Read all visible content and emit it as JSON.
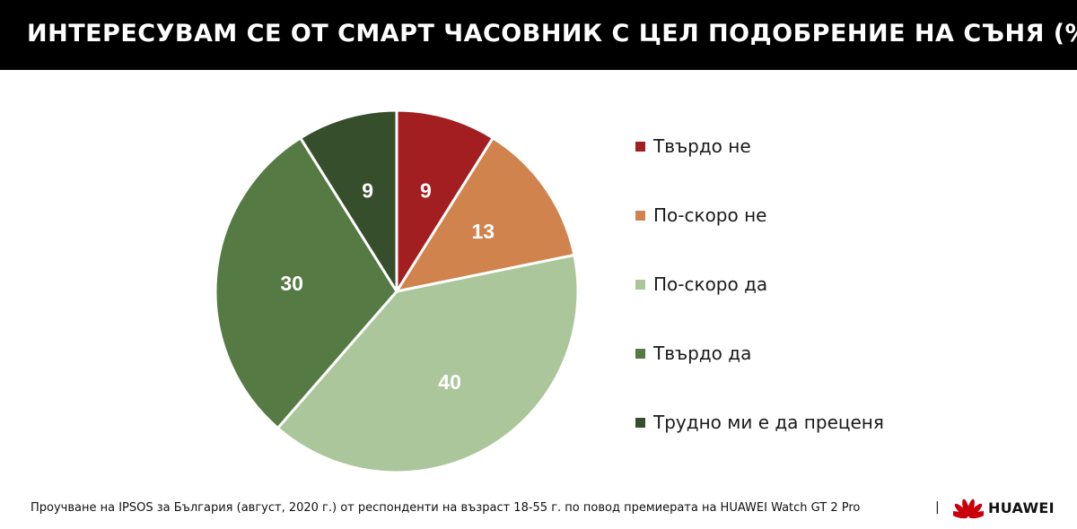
{
  "header": {
    "title": "ИНТЕРЕСУВАМ СЕ ОТ СМАРТ ЧАСОВНИК С ЦЕЛ ПОДОБРЕНИЕ НА СЪНЯ (%)"
  },
  "chart_data": {
    "type": "pie",
    "title": "ИНТЕРЕСУВАМ СЕ ОТ СМАРТ ЧАСОВНИК С ЦЕЛ ПОДОБРЕНИЕ НА СЪНЯ (%)",
    "categories": [
      "Твърдо не",
      "По-скоро не",
      "По-скоро да",
      "Твърдо да",
      "Трудно ми е да преценя"
    ],
    "values": [
      9,
      13,
      40,
      30,
      9
    ],
    "colors": [
      "#a31e21",
      "#d0834d",
      "#abc69a",
      "#557a43",
      "#374e2c"
    ],
    "start": "12 o'clock",
    "direction": "clockwise",
    "legend_position": "right"
  },
  "footer": {
    "note": "Проучване на IPSOS за България (август, 2020 г.) от респонденти на възраст 18-55 г. по повод премиерата на HUAWEI Watch GT 2 Pro",
    "separator": "|"
  },
  "brand": {
    "name": "HUAWEI",
    "icon": "huawei-flower-icon",
    "logo_color": "#c7000b"
  }
}
